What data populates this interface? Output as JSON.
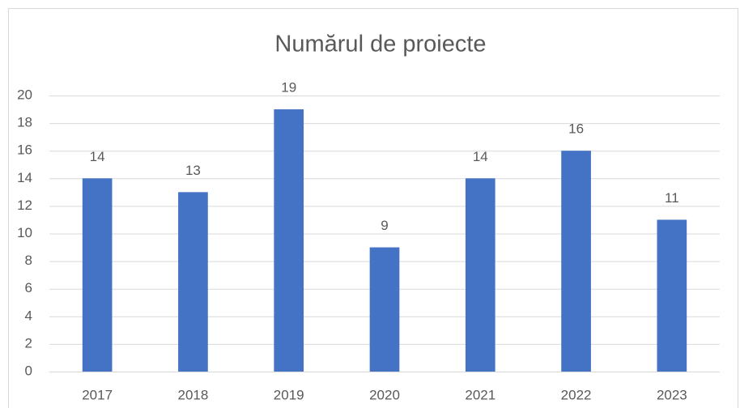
{
  "chart_data": {
    "type": "bar",
    "title": "Numărul de proiecte",
    "categories": [
      "2017",
      "2018",
      "2019",
      "2020",
      "2021",
      "2022",
      "2023"
    ],
    "values": [
      14,
      13,
      19,
      9,
      14,
      16,
      11
    ],
    "color": "#4472c4",
    "ylim": [
      0,
      20
    ],
    "yticks": [
      0,
      2,
      4,
      6,
      8,
      10,
      12,
      14,
      16,
      18,
      20
    ],
    "grid": true,
    "data_labels": true
  }
}
